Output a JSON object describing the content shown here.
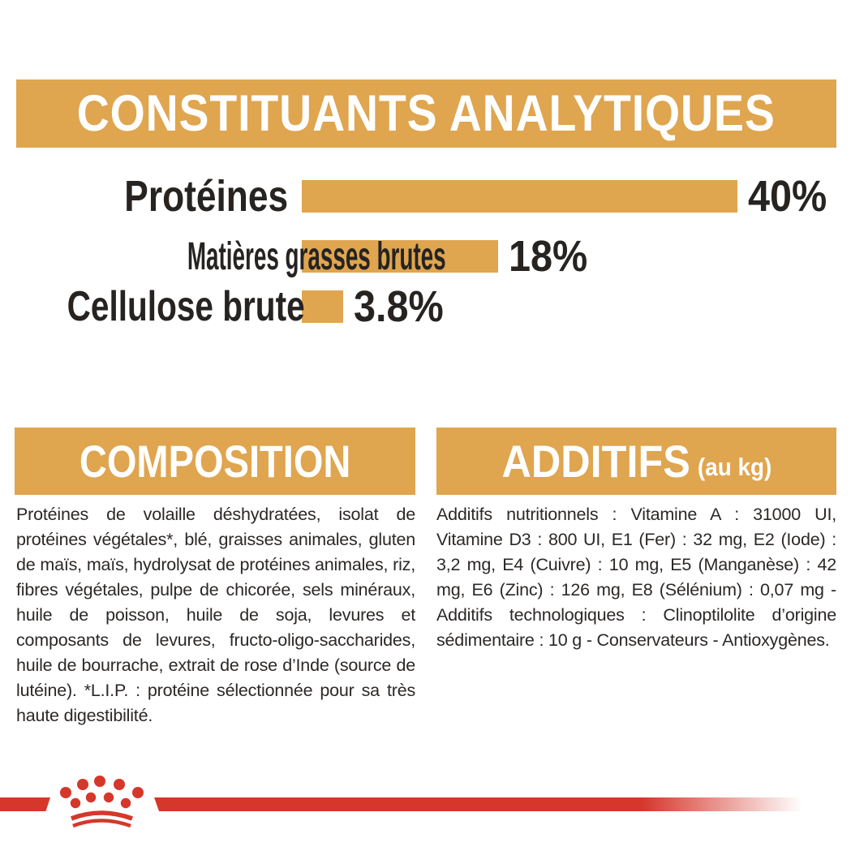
{
  "colors": {
    "gold": "#DFA54F",
    "red": "#D6372B",
    "ink": "#262321",
    "background": "#FFFFFF"
  },
  "header": {
    "title": "CONSTITUANTS ANALYTIQUES"
  },
  "chart_data": {
    "type": "bar",
    "orientation": "horizontal",
    "title": "CONSTITUANTS ANALYTIQUES",
    "categories": [
      "Protéines",
      "Matières grasses brutes",
      "Cellulose brute"
    ],
    "values": [
      40,
      18,
      3.8
    ],
    "value_labels": [
      "40%",
      "18%",
      "3.8%"
    ],
    "unit": "%",
    "xlim": [
      0,
      40
    ],
    "bar_color": "#DFA54F",
    "grid": false,
    "legend": false
  },
  "composition": {
    "title": "COMPOSITION",
    "body": "Protéines de volaille déshydratées, isolat de protéines végétales*, blé, graisses animales, gluten de maïs, maïs, hydrolysat de protéines animales, riz, fibres végétales, pulpe de chicorée, sels minéraux, huile de poisson, huile de soja, levures et composants de levures, fructo-oligo-saccharides, huile de bourrache, extrait de rose d’Inde (source de lutéine). *L.I.P. : protéine sélectionnée pour sa très haute digestibilité."
  },
  "additifs": {
    "title": "ADDITIFS",
    "title_suffix": "(au kg)",
    "body": "Additifs nutritionnels : Vitamine A : 31000 UI, Vitamine D3 : 800 UI, E1 (Fer) : 32 mg, E2 (Iode) : 3,2 mg, E4 (Cuivre) : 10 mg, E5 (Manganèse) : 42 mg, E6 (Zinc) : 126 mg, E8 (Sélénium) : 0,07 mg - Additifs technologiques : Clinoptilolite d’origine sédimentaire : 10 g - Conservateurs - Antioxygènes."
  },
  "footer": {
    "brand_logo": "royal-canin-crown"
  }
}
